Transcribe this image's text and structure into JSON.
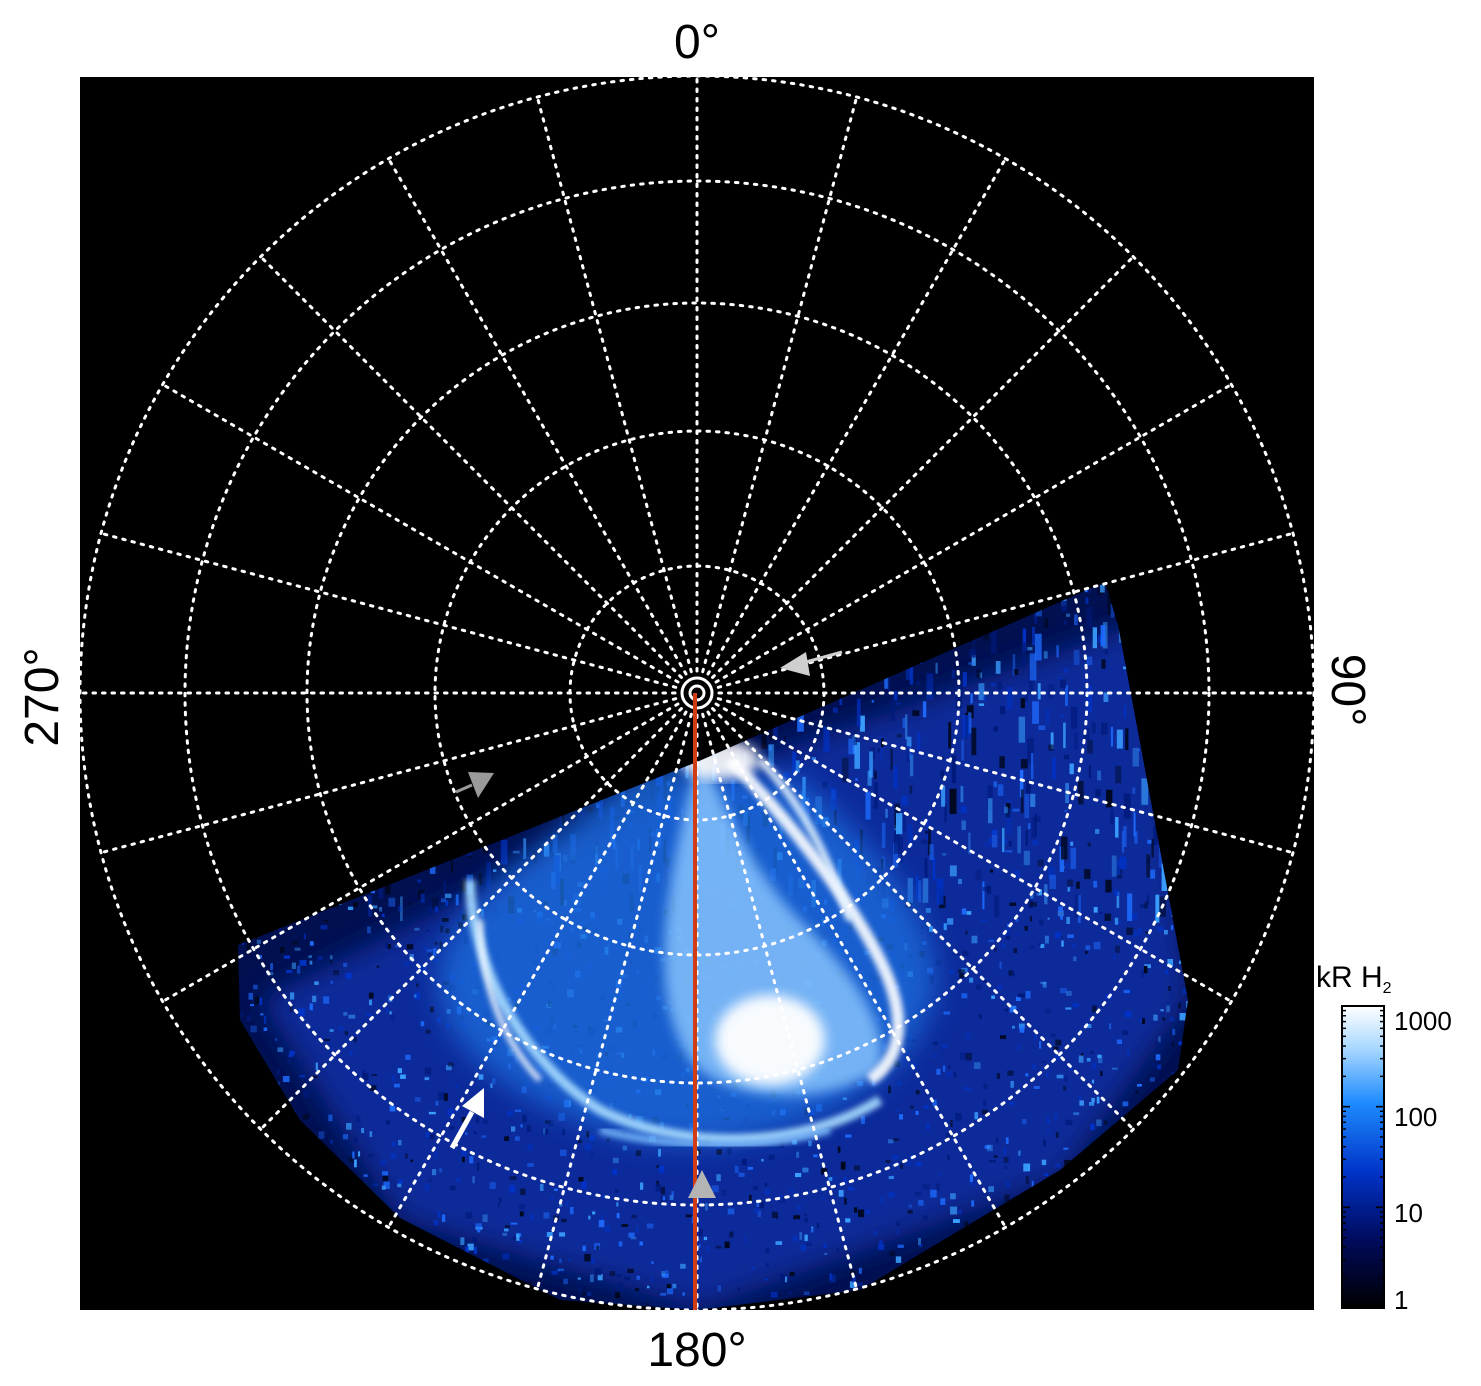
{
  "figure": {
    "longitude_labels": {
      "top": "0°",
      "bottom": "180°",
      "left": "270°",
      "right": "90°"
    },
    "colorbar": {
      "title_main": "kR H",
      "title_subscript": "2",
      "scale": "log",
      "ticks": [
        "1000",
        "100",
        "10",
        "1"
      ],
      "colors": [
        "#000000",
        "#000a5a",
        "#0033c8",
        "#1e8cff",
        "#a8d8ff",
        "#ffffff"
      ]
    },
    "grid": {
      "style": "dotted",
      "color": "#ffffff",
      "spokes": 24,
      "rings": 5
    },
    "reference_meridian_color": "#d23c14",
    "arrows": [
      {
        "name": "white-arrow",
        "color": "#ffffff"
      },
      {
        "name": "gray-arrow-bottom",
        "color": "#b4b4b4"
      },
      {
        "name": "gray-arrow-left",
        "color": "#9a9a9a"
      },
      {
        "name": "gray-arrow-right",
        "color": "#cfcfcf"
      }
    ]
  }
}
